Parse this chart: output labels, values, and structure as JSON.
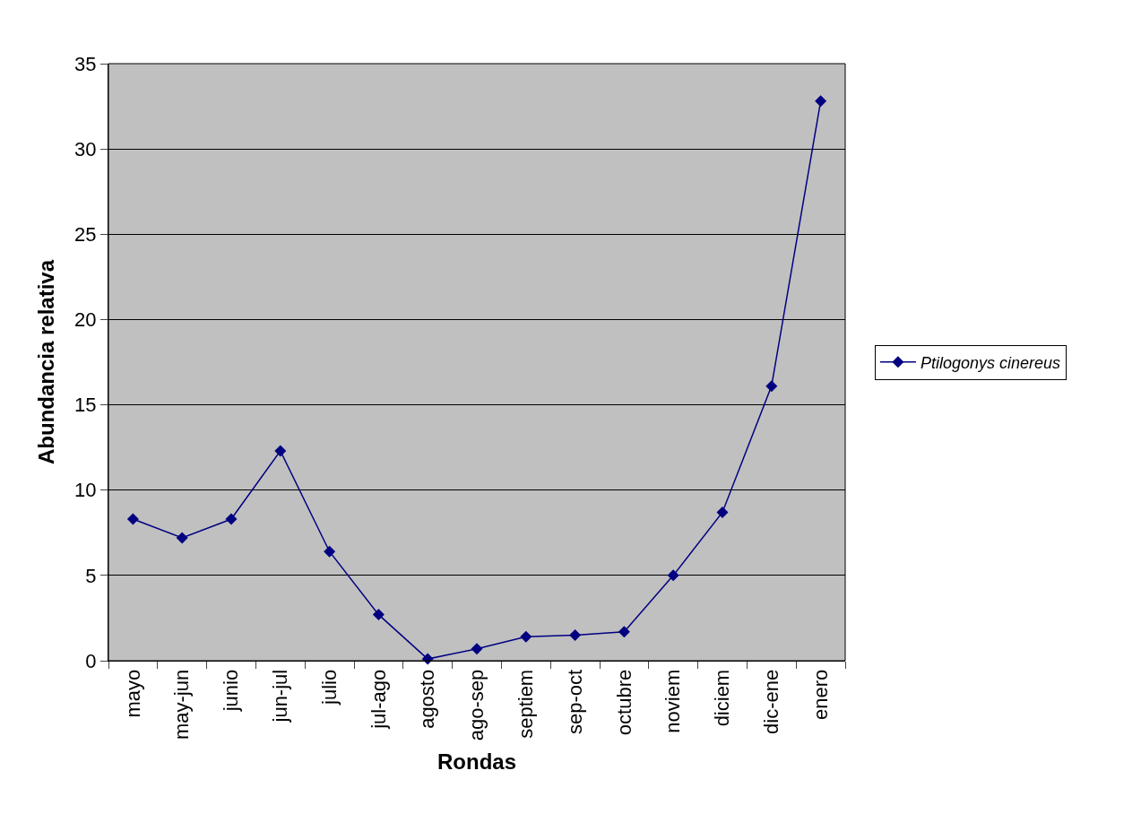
{
  "chart_data": {
    "type": "line",
    "xlabel": "Rondas",
    "ylabel": "Abundancia relativa",
    "categories": [
      "mayo",
      "may-jun",
      "junio",
      "jun-jul",
      "julio",
      "jul-ago",
      "agosto",
      "ago-sep",
      "septiem",
      "sep-oct",
      "octubre",
      "noviem",
      "diciem",
      "dic-ene",
      "enero"
    ],
    "series": [
      {
        "name": "Ptilogonys cinereus",
        "color": "#000080",
        "values": [
          8.3,
          7.2,
          8.3,
          12.3,
          6.4,
          2.7,
          0.1,
          0.7,
          1.4,
          1.5,
          1.7,
          5.0,
          8.7,
          16.1,
          32.8
        ]
      }
    ],
    "ylim": [
      0,
      35
    ],
    "yticks": [
      0,
      5,
      10,
      15,
      20,
      25,
      30,
      35
    ],
    "grid": "y",
    "legend": "right",
    "marker": "diamond",
    "line_style": "solid"
  }
}
